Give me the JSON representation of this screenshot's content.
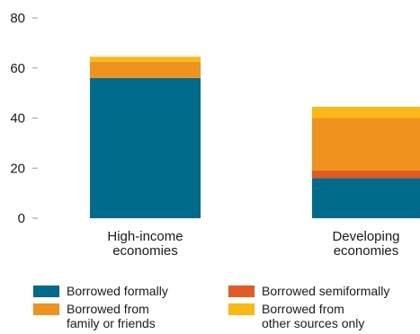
{
  "chart_data": {
    "type": "bar",
    "stacked": true,
    "categories": [
      "High-income\neconomies",
      "Developing\neconomies"
    ],
    "series": [
      {
        "name": "Borrowed formally",
        "color": "#006B8C",
        "values": [
          56,
          16
        ]
      },
      {
        "name": "Borrowed semiformally",
        "color": "#E35B22",
        "values": [
          0,
          3
        ]
      },
      {
        "name": "Borrowed from family or friends",
        "color": "#F0921E",
        "values": [
          6.5,
          21
        ]
      },
      {
        "name": "Borrowed from other sources only",
        "color": "#FDB913",
        "values": [
          2,
          4.5
        ]
      }
    ],
    "ylim": [
      0,
      80
    ],
    "yticks": [
      0,
      20,
      40,
      60,
      80
    ],
    "grid": false,
    "legend_position": "bottom",
    "title": "",
    "xlabel": "",
    "ylabel": ""
  },
  "legend": {
    "items": [
      {
        "label": "Borrowed formally",
        "color": "#006B8C"
      },
      {
        "label": "Borrowed semiformally",
        "color": "#E35B22"
      },
      {
        "label": "Borrowed from\nfamily or friends",
        "color": "#F0921E"
      },
      {
        "label": "Borrowed from\nother sources only",
        "color": "#FDB913"
      }
    ]
  }
}
